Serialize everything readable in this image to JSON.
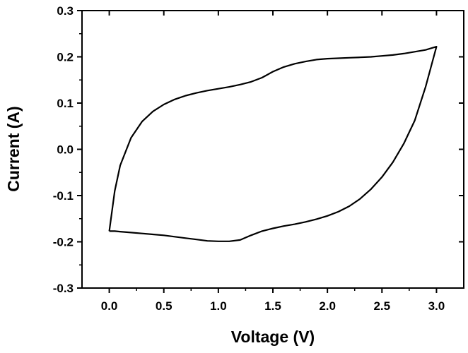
{
  "chart_data": {
    "type": "line",
    "xlabel": "Voltage (V)",
    "ylabel": "Current (A)",
    "xlim": [
      -0.25,
      3.25
    ],
    "ylim": [
      -0.3,
      0.3
    ],
    "xticks": [
      0.0,
      0.5,
      1.0,
      1.5,
      2.0,
      2.5,
      3.0
    ],
    "xtick_labels": [
      "0.0",
      "0.5",
      "1.0",
      "1.5",
      "2.0",
      "2.5",
      "3.0"
    ],
    "yticks": [
      -0.3,
      -0.2,
      -0.1,
      0.0,
      0.1,
      0.2,
      0.3
    ],
    "ytick_labels": [
      "-0.3",
      "-0.2",
      "-0.1",
      "0.0",
      "0.1",
      "0.2",
      "0.3"
    ],
    "grid": false,
    "line_color": "#000000",
    "series": [
      {
        "x": [
          0.0,
          0.05,
          0.1,
          0.2,
          0.3,
          0.4,
          0.5,
          0.6,
          0.7,
          0.8,
          0.9,
          1.0,
          1.1,
          1.2,
          1.3,
          1.4,
          1.5,
          1.6,
          1.7,
          1.8,
          1.9,
          2.0,
          2.1,
          2.2,
          2.3,
          2.4,
          2.5,
          2.6,
          2.7,
          2.8,
          2.9,
          3.0,
          2.97,
          2.9,
          2.8,
          2.7,
          2.6,
          2.5,
          2.4,
          2.3,
          2.2,
          2.1,
          2.0,
          1.9,
          1.8,
          1.7,
          1.6,
          1.5,
          1.4,
          1.3,
          1.2,
          1.1,
          1.0,
          0.9,
          0.8,
          0.7,
          0.6,
          0.5,
          0.4,
          0.3,
          0.2,
          0.1,
          0.05,
          0.0
        ],
        "y": [
          -0.177,
          -0.177,
          -0.178,
          -0.18,
          -0.182,
          -0.184,
          -0.186,
          -0.189,
          -0.192,
          -0.195,
          -0.198,
          -0.199,
          -0.199,
          -0.196,
          -0.186,
          -0.177,
          -0.171,
          -0.166,
          -0.162,
          -0.157,
          -0.151,
          -0.144,
          -0.135,
          -0.123,
          -0.107,
          -0.086,
          -0.06,
          -0.028,
          0.012,
          0.062,
          0.135,
          0.222,
          0.22,
          0.215,
          0.211,
          0.207,
          0.204,
          0.202,
          0.2,
          0.199,
          0.198,
          0.197,
          0.196,
          0.194,
          0.19,
          0.185,
          0.178,
          0.168,
          0.155,
          0.146,
          0.14,
          0.135,
          0.131,
          0.127,
          0.122,
          0.116,
          0.108,
          0.097,
          0.082,
          0.06,
          0.025,
          -0.035,
          -0.09,
          -0.177
        ]
      }
    ]
  }
}
